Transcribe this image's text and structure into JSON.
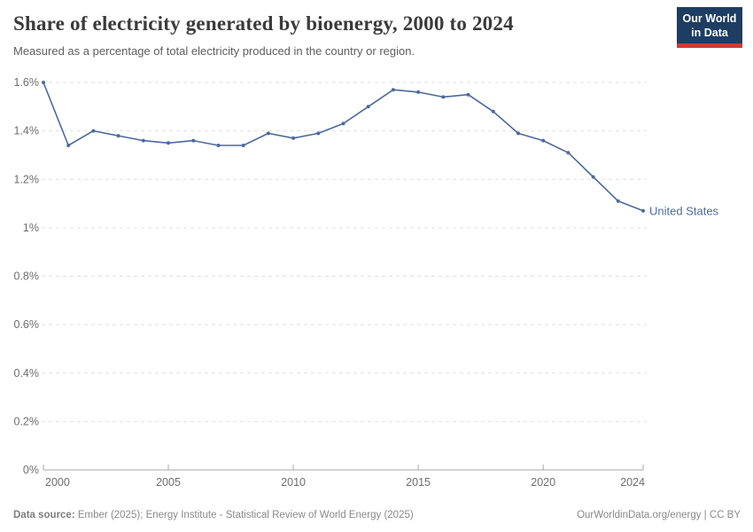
{
  "header": {
    "title": "Share of electricity generated by bioenergy, 2000 to 2024",
    "subtitle": "Measured as a percentage of total electricity produced in the country or region.",
    "logo_line1": "Our World",
    "logo_line2": "in Data"
  },
  "chart_data": {
    "type": "line",
    "title": "Share of electricity generated by bioenergy, 2000 to 2024",
    "x": [
      2000,
      2001,
      2002,
      2003,
      2004,
      2005,
      2006,
      2007,
      2008,
      2009,
      2010,
      2011,
      2012,
      2013,
      2014,
      2015,
      2016,
      2017,
      2018,
      2019,
      2020,
      2021,
      2022,
      2023,
      2024
    ],
    "series": [
      {
        "name": "United States",
        "color": "#4c6a9c",
        "values": [
          1.6,
          1.34,
          1.4,
          1.38,
          1.36,
          1.35,
          1.36,
          1.34,
          1.34,
          1.39,
          1.37,
          1.39,
          1.43,
          1.5,
          1.57,
          1.56,
          1.54,
          1.55,
          1.48,
          1.39,
          1.36,
          1.31,
          1.21,
          1.11,
          1.07
        ]
      }
    ],
    "ylim": [
      0,
      1.6
    ],
    "yticks": [
      0,
      0.2,
      0.4,
      0.6,
      0.8,
      1,
      1.2,
      1.4,
      1.6
    ],
    "ytick_labels": [
      "0%",
      "0.2%",
      "0.4%",
      "0.6%",
      "0.8%",
      "1%",
      "1.2%",
      "1.4%",
      "1.6%"
    ],
    "xticks": [
      2000,
      2005,
      2010,
      2015,
      2020,
      2024
    ],
    "grid": "horizontal-dashed",
    "legend": "entity-label-at-line-end",
    "colors": {
      "line": "#4c6a9c",
      "grid": "#e0e0e0",
      "axis": "#a7a7a7"
    }
  },
  "footer": {
    "source_label": "Data source:",
    "source_text": "Ember (2025); Energy Institute - Statistical Review of World Energy (2025)",
    "credit": "OurWorldinData.org/energy | CC BY"
  }
}
